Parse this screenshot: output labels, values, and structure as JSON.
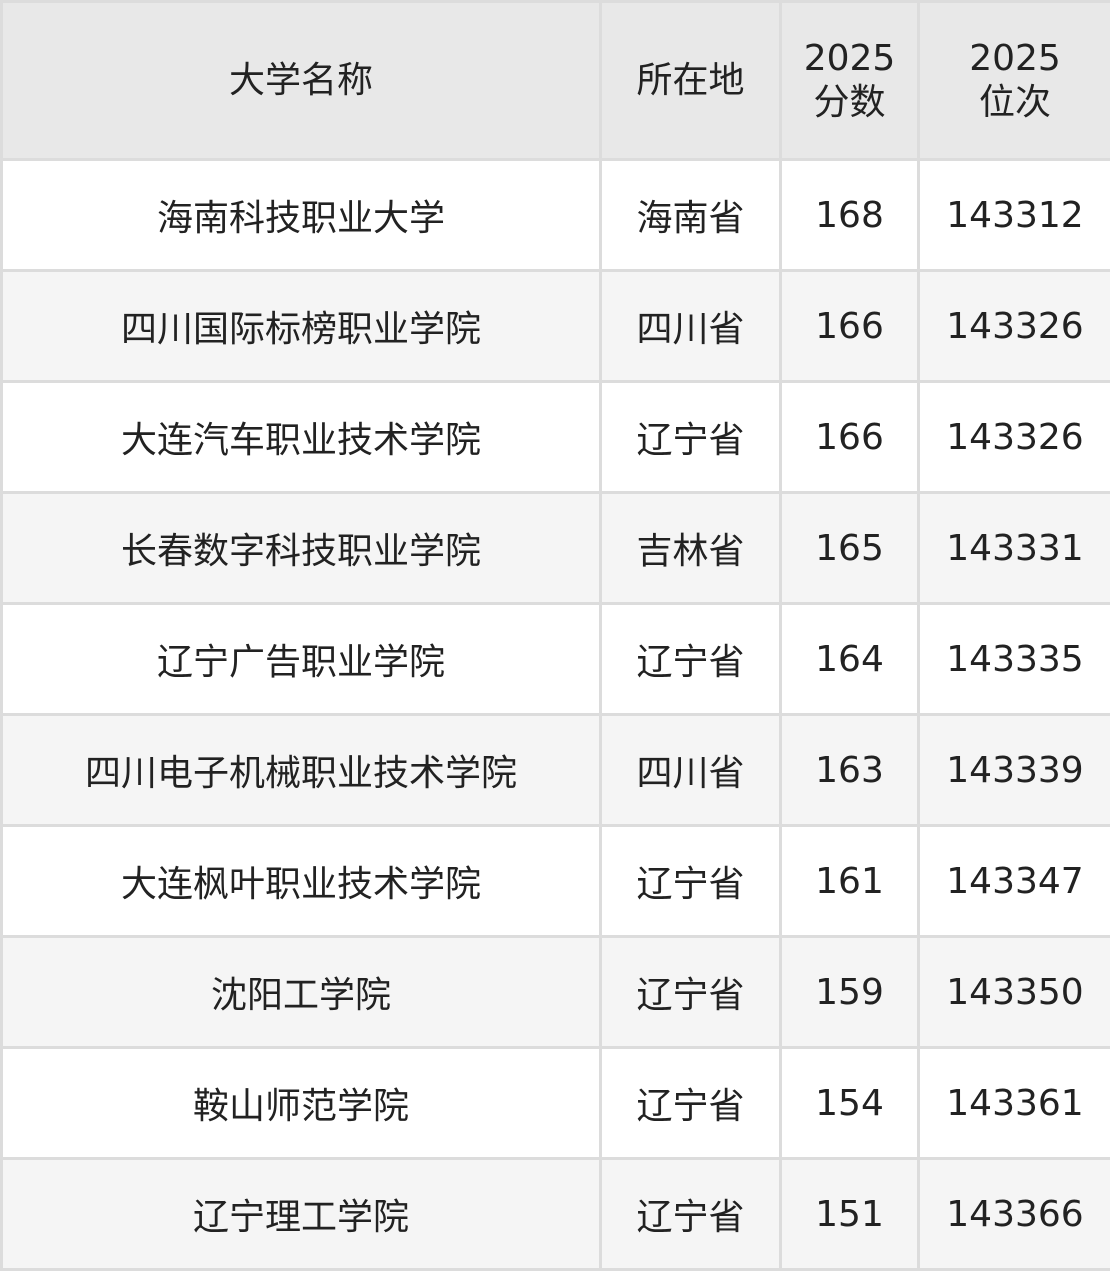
{
  "headers": [
    "大学名称",
    "所在地",
    "2025\n分数",
    "2025\n位次"
  ],
  "header_lines": {
    "score": [
      "2025",
      "分数"
    ],
    "rank": [
      "2025",
      "位次"
    ]
  },
  "rows": [
    [
      "海南科技职业大学",
      "海南省",
      "168",
      "143312"
    ],
    [
      "四川国际标榜职业学院",
      "四川省",
      "166",
      "143326"
    ],
    [
      "大连汽车职业技术学院",
      "辽宁省",
      "166",
      "143326"
    ],
    [
      "长春数字科技职业学院",
      "吉林省",
      "165",
      "143331"
    ],
    [
      "辽宁广告职业学院",
      "辽宁省",
      "164",
      "143335"
    ],
    [
      "四川电子机械职业技术学院",
      "四川省",
      "163",
      "143339"
    ],
    [
      "大连枫叶职业技术学院",
      "辽宁省",
      "161",
      "143347"
    ],
    [
      "沈阳工学院",
      "辽宁省",
      "159",
      "143350"
    ],
    [
      "鞍山师范学院",
      "辽宁省",
      "154",
      "143361"
    ],
    [
      "辽宁理工学院",
      "辽宁省",
      "151",
      "143366"
    ]
  ]
}
